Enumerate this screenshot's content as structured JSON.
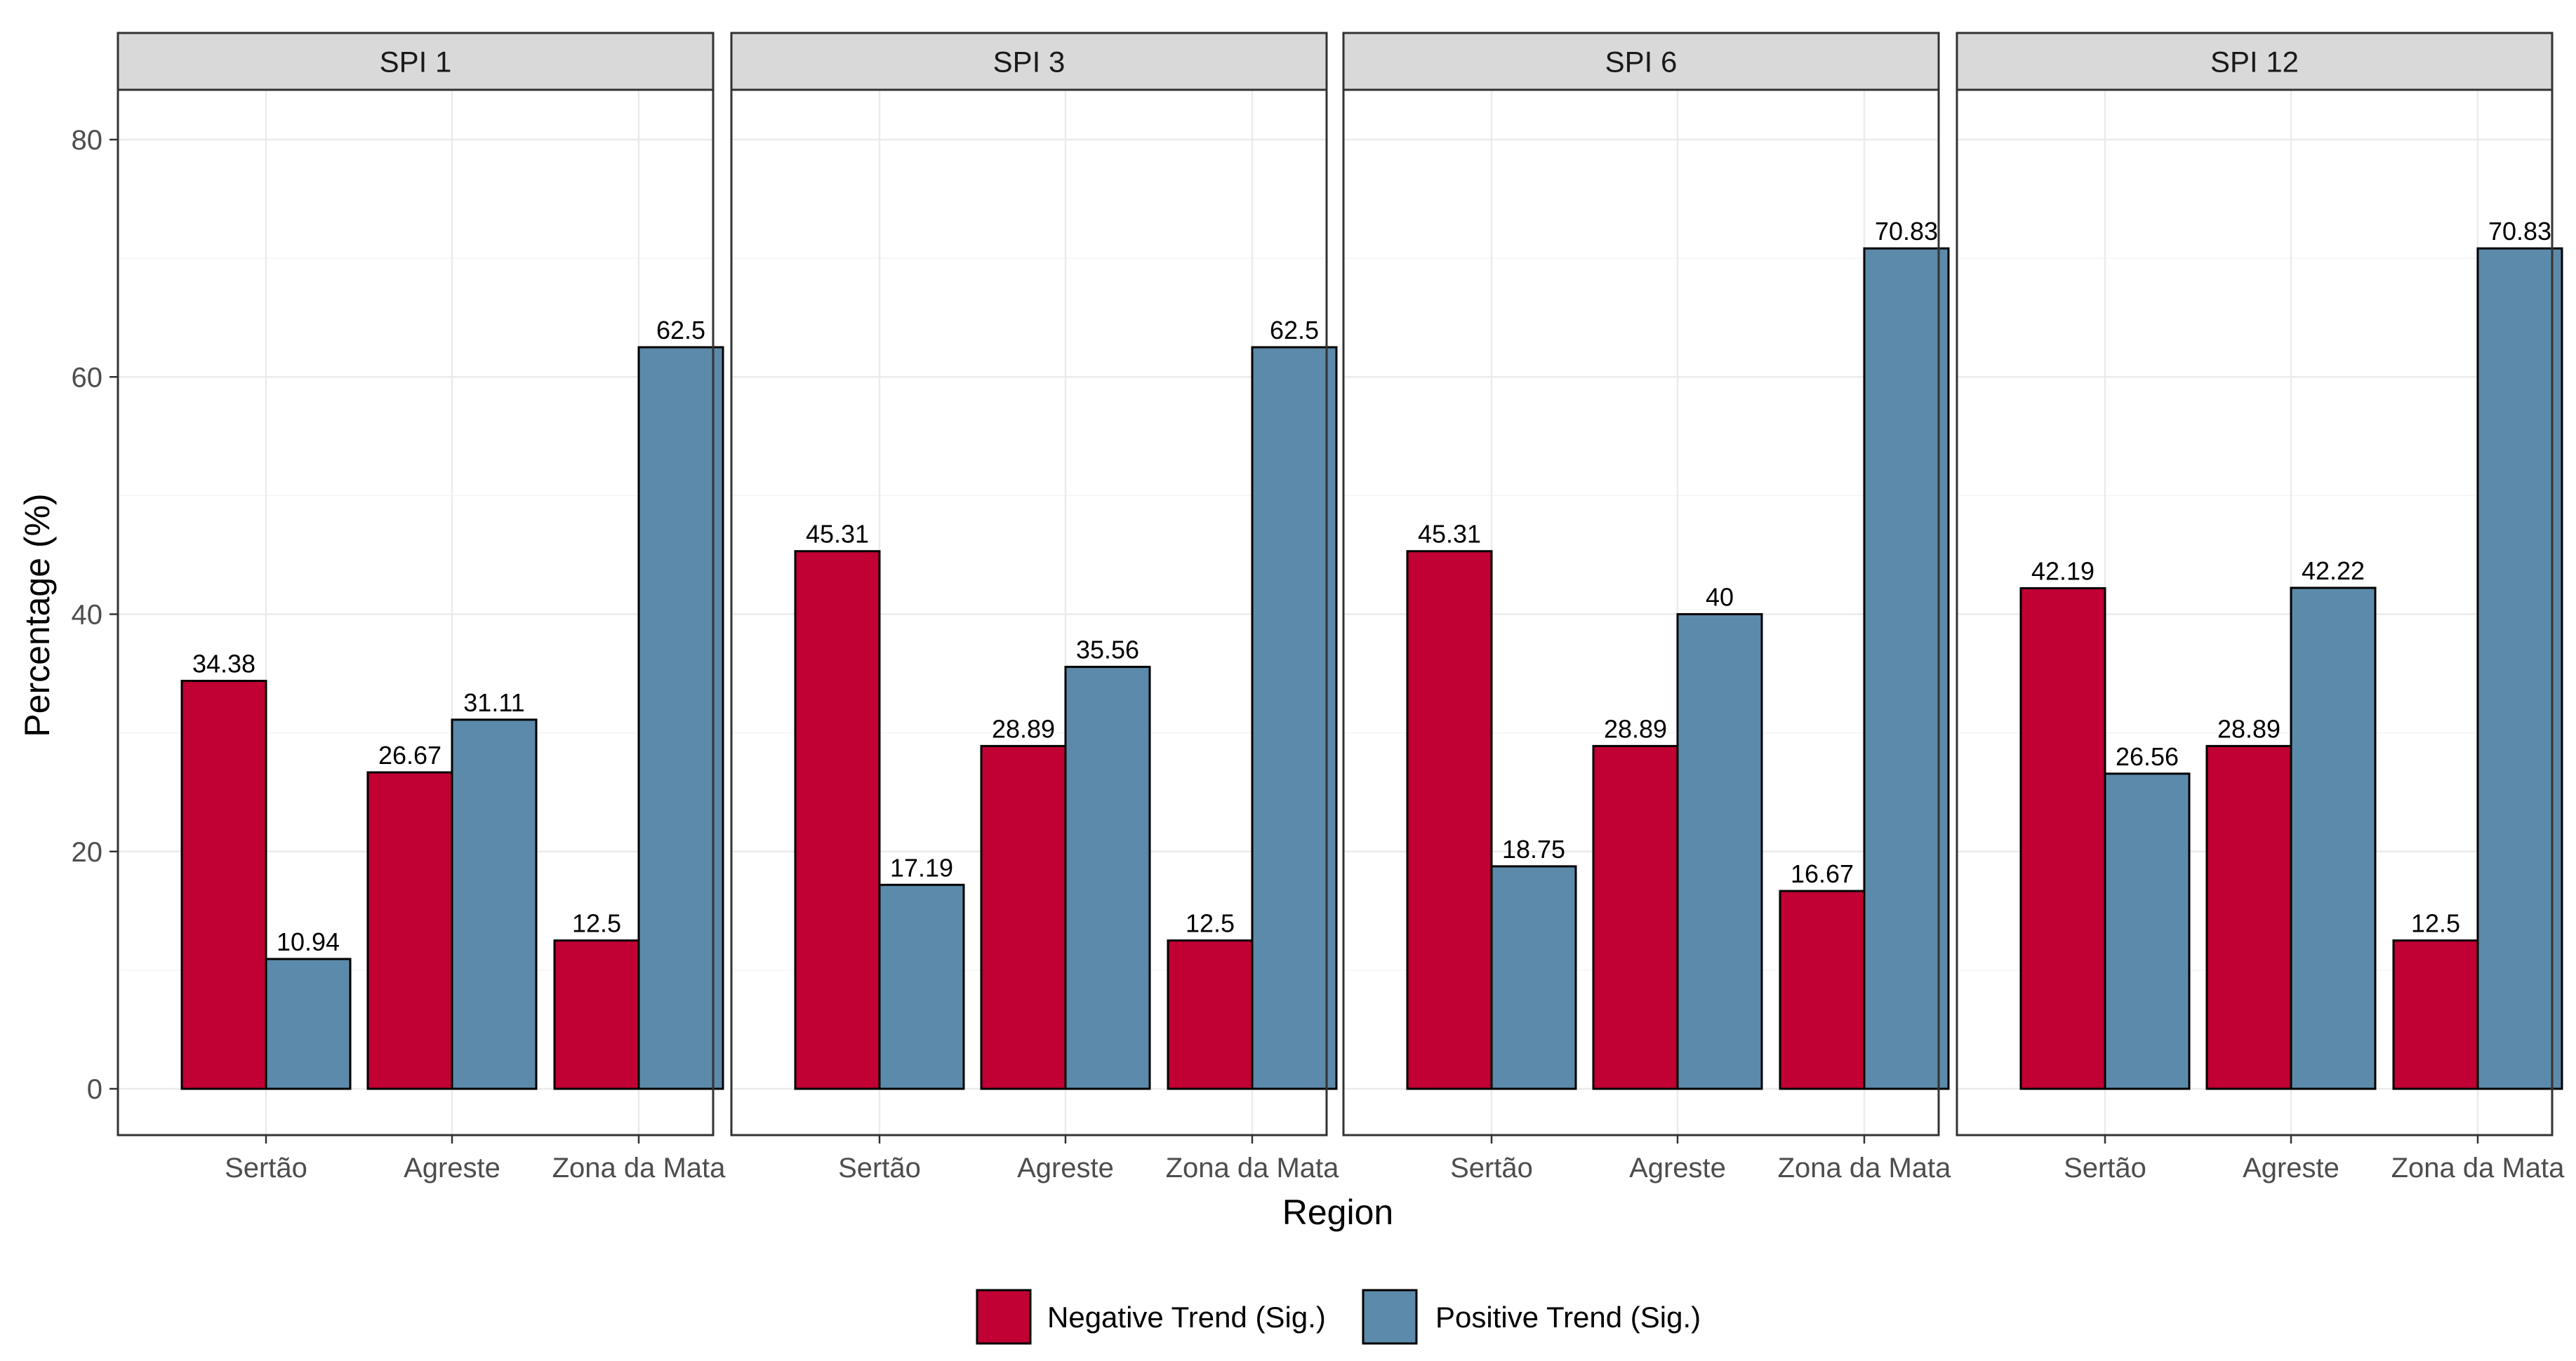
{
  "chart_data": {
    "type": "bar",
    "facets": [
      "SPI 1",
      "SPI 3",
      "SPI 6",
      "SPI 12"
    ],
    "categories": [
      "Sertão",
      "Agreste",
      "Zona da Mata"
    ],
    "series": [
      {
        "name": "Negative Trend (Sig.)",
        "color": "#C10034",
        "values": [
          [
            34.38,
            26.67,
            12.5
          ],
          [
            45.31,
            28.89,
            12.5
          ],
          [
            45.31,
            28.89,
            16.67
          ],
          [
            42.19,
            28.89,
            12.5
          ]
        ],
        "labels": [
          [
            "34.38",
            "26.67",
            "12.5"
          ],
          [
            "45.31",
            "28.89",
            "12.5"
          ],
          [
            "45.31",
            "28.89",
            "16.67"
          ],
          [
            "42.19",
            "28.89",
            "12.5"
          ]
        ]
      },
      {
        "name": "Positive Trend (Sig.)",
        "color": "#5C8AAA",
        "values": [
          [
            10.94,
            31.11,
            62.5
          ],
          [
            17.19,
            35.56,
            62.5
          ],
          [
            18.75,
            40,
            70.83
          ],
          [
            26.56,
            42.22,
            70.83
          ]
        ],
        "labels": [
          [
            "10.94",
            "31.11",
            "62.5"
          ],
          [
            "17.19",
            "35.56",
            "62.5"
          ],
          [
            "18.75",
            "40",
            "70.83"
          ],
          [
            "26.56",
            "42.22",
            "70.83"
          ]
        ]
      }
    ],
    "xlabel": "Region",
    "ylabel": "Percentage (%)",
    "ylim": [
      -3.5,
      80
    ],
    "yticks": [
      0,
      20,
      40,
      60,
      80
    ],
    "ytick_labels": [
      "0",
      "20",
      "40",
      "60",
      "80"
    ],
    "grid": true,
    "legend_position": "bottom"
  }
}
